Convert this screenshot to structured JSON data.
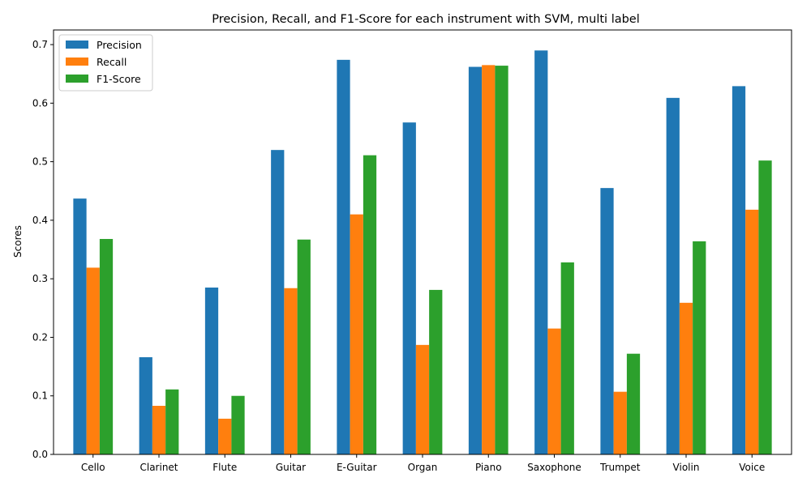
{
  "chart_data": {
    "type": "bar",
    "title": "Precision, Recall, and F1-Score for each instrument with SVM, multi label",
    "xlabel": "",
    "ylabel": "Scores",
    "ylim": [
      0,
      0.725
    ],
    "yticks": [
      "0.0",
      "0.1",
      "0.2",
      "0.3",
      "0.4",
      "0.5",
      "0.6",
      "0.7"
    ],
    "categories": [
      "Cello",
      "Clarinet",
      "Flute",
      "Guitar",
      "E-Guitar",
      "Organ",
      "Piano",
      "Saxophone",
      "Trumpet",
      "Violin",
      "Voice"
    ],
    "series": [
      {
        "name": "Precision",
        "color": "#1f77b4",
        "values": [
          0.437,
          0.166,
          0.285,
          0.52,
          0.674,
          0.567,
          0.662,
          0.69,
          0.455,
          0.609,
          0.629
        ]
      },
      {
        "name": "Recall",
        "color": "#ff7f0e",
        "values": [
          0.319,
          0.083,
          0.061,
          0.284,
          0.41,
          0.187,
          0.665,
          0.215,
          0.107,
          0.259,
          0.418
        ]
      },
      {
        "name": "F1-Score",
        "color": "#2ca02c",
        "values": [
          0.368,
          0.111,
          0.1,
          0.367,
          0.511,
          0.281,
          0.664,
          0.328,
          0.172,
          0.364,
          0.502
        ]
      }
    ],
    "legend_position": "top-left",
    "grid": false
  }
}
